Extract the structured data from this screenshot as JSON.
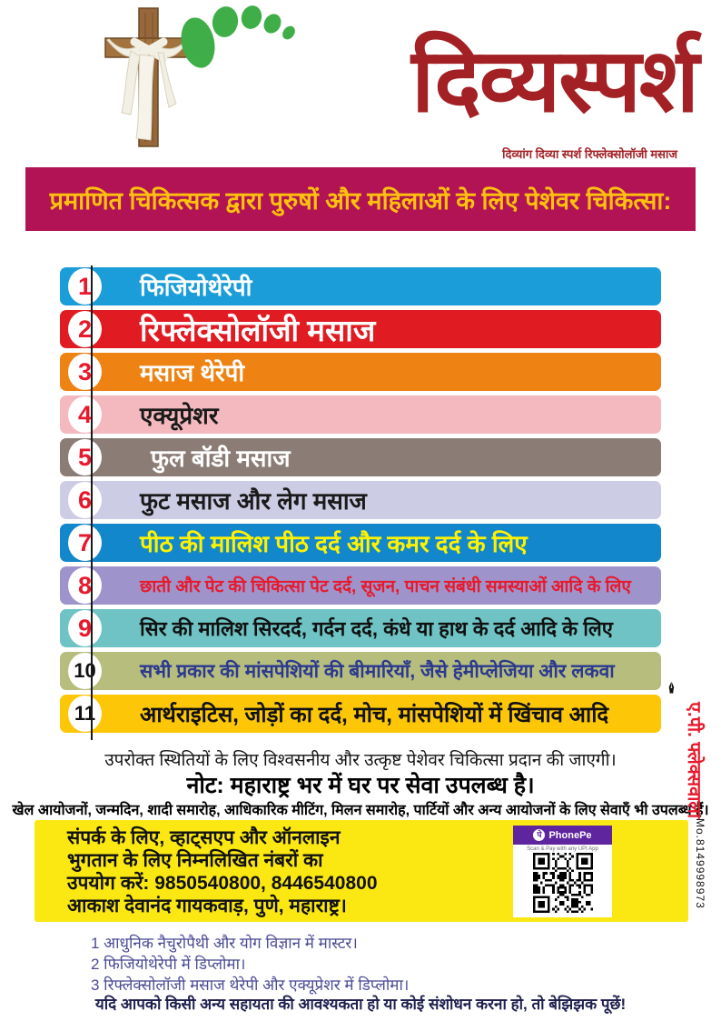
{
  "header": {
    "title": "दिव्यस्पर्श",
    "subtitle": "दिव्यांग दिव्या स्पर्श रिफ्लेक्सोलॉजी मसाज",
    "title_color": "#a32125",
    "footprint_color": "#3fae49",
    "cross_color": "#96683c"
  },
  "banner": {
    "text": "प्रमाणित चिकित्सक द्वारा पुरुषों और महिलाओं के लिए पेशेवर चिकित्सा:",
    "bg": "#b11355",
    "fg": "#ffc10d"
  },
  "services": {
    "items": [
      {
        "num": "1",
        "label": "फिजियोथेरेपी",
        "bg": "#1b9dd9",
        "fg": "#ffffff"
      },
      {
        "num": "2",
        "label": "रिफ्लेक्सोलॉजी मसाज",
        "bg": "#e11b22",
        "fg": "#ffffff"
      },
      {
        "num": "3",
        "label": "मसाज थेरेपी",
        "bg": "#ee8212",
        "fg": "#ffffff"
      },
      {
        "num": "4",
        "label": "एक्यूप्रेशर",
        "bg": "#f4b9be",
        "fg": "#1a1a1a"
      },
      {
        "num": "5",
        "label": "फुल बॉडी मसाज",
        "bg": "#8b7d76",
        "fg": "#ffffff"
      },
      {
        "num": "6",
        "label": "फुट मसाज और लेग मसाज",
        "bg": "#cdcce5",
        "fg": "#1a1a1a"
      },
      {
        "num": "7",
        "label": "पीठ की मालिश पीठ दर्द और कमर दर्द के लिए",
        "bg": "#1287cb",
        "fg": "#fff200"
      },
      {
        "num": "8",
        "label": "छाती और पेट की चिकित्सा पेट दर्द, सूजन, पाचन संबंधी समस्याओं आदि के लिए",
        "bg": "#9e94cb",
        "fg": "#e8192c"
      },
      {
        "num": "9",
        "label": "सिर की मालिश सिरदर्द, गर्दन दर्द, कंधे या हाथ के दर्द आदि के लिए",
        "bg": "#6fc3c4",
        "fg": "#101010"
      },
      {
        "num": "10",
        "label": "सभी प्रकार की मांसपेशियों की बीमारियाँ, जैसे हेमीप्लेजिया और लकवा",
        "bg": "#b7bd7c",
        "fg": "#2b3990"
      },
      {
        "num": "11",
        "label": "आर्थराइटिस, जोड़ों का दर्द, मोच, मांसपेशियों में खिंचाव आदि",
        "bg": "#fdc708",
        "fg": "#101010"
      }
    ]
  },
  "notes": {
    "line1": "उपरोक्त स्थितियों के लिए विश्वसनीय और उत्कृष्ट पेशेवर चिकित्सा प्रदान की जाएगी।",
    "line2": "नोट: महाराष्ट्र भर में घर पर सेवा उपलब्ध है।",
    "line3": "खेल आयोजनों, जन्मदिन, शादी समारोह, आधिकारिक मीटिंग, मिलन समारोह, पार्टियों और अन्य आयोजनों के लिए सेवाएँ भी उपलब्ध हैं।"
  },
  "contact": {
    "line1": "संपर्क के लिए, व्हाट्सएप और ऑनलाइन",
    "line2": "भुगतान के लिए निम्नलिखित नंबरों का",
    "line3": "उपयोग करें: 9850540800, 8446540800",
    "line4": "आकाश देवानंद गायकवाड़, पुणे, महाराष्ट्र।",
    "phone_numbers": [
      "9850540800",
      "8446540800"
    ],
    "box_color": "#fbe813"
  },
  "phonepe": {
    "brand": "PhonePe",
    "logo_glyph": "पे",
    "scan_text": "Scan & Pay with any UPI App",
    "brand_color": "#5f259f"
  },
  "footnotes": [
    "1 आधुनिक नैचुरोपैथी और योग विज्ञान में मास्टर।",
    "2 फिजियोथेरेपी में डिप्लोमा।",
    "3 रिफ्लेक्सोलॉजी मसाज थेरेपी और एक्यूप्रेशर में डिप्लोमा।"
  ],
  "closing": "यदि आपको किसी अन्य सहायता की आवश्यकता हो या कोई संशोधन करना हो, तो बेझिझक पूछें!",
  "side": {
    "name": "ए.पी. फ्लेक्सवाला",
    "mobile": "Mo.8149998973",
    "pen_icon": "✒"
  }
}
